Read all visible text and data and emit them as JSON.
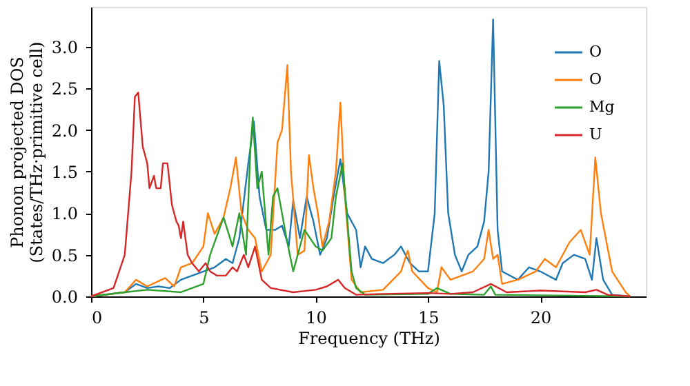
{
  "chart_data": {
    "type": "line",
    "xlabel": "Frequency (THz)",
    "ylabel": "Phonon projected DOS\n(States/THz·primitive cell)",
    "xlim": [
      0,
      24.7
    ],
    "ylim": [
      0,
      3.48
    ],
    "xticks": [
      0,
      5,
      10,
      15,
      20
    ],
    "yticks": [
      {
        "value": 0,
        "label": "0.0"
      },
      {
        "value": 0.5,
        "label": "0.5"
      },
      {
        "value": 1,
        "label": "1.0"
      },
      {
        "value": 1.5,
        "label": "1.5"
      },
      {
        "value": 2,
        "label": "2.0"
      },
      {
        "value": 2.5,
        "label": "2.5"
      },
      {
        "value": 3,
        "label": "3.0"
      }
    ],
    "grid": false,
    "legend": "top right",
    "line_style": "solid",
    "marker": "none",
    "series": [
      {
        "name": "O",
        "color": "#1f77b4",
        "x": [
          0,
          1.5,
          2,
          2.5,
          3,
          3.5,
          4,
          5,
          5.5,
          6,
          6.3,
          6.6,
          7,
          7.25,
          7.5,
          7.8,
          8.2,
          8.5,
          8.8,
          9,
          9.3,
          9.6,
          9.9,
          10.2,
          10.5,
          10.8,
          11.1,
          11.4,
          11.8,
          12,
          12.2,
          12.5,
          13,
          13.5,
          13.8,
          14.2,
          14.6,
          15,
          15.3,
          15.5,
          15.7,
          15.9,
          16.2,
          16.5,
          16.8,
          17.2,
          17.5,
          17.7,
          17.9,
          18.1,
          18.3,
          19,
          19.5,
          20,
          20.7,
          21,
          21.5,
          22,
          22.3,
          22.5,
          22.8,
          23.2,
          24
        ],
        "values": [
          0,
          0.05,
          0.15,
          0.1,
          0.12,
          0.1,
          0.2,
          0.3,
          0.35,
          0.45,
          0.4,
          0.7,
          1.6,
          2.1,
          1.2,
          0.8,
          0.8,
          0.85,
          0.6,
          1.15,
          0.7,
          1.2,
          0.9,
          0.5,
          0.7,
          1.2,
          1.65,
          1.0,
          0.8,
          0.35,
          0.6,
          0.45,
          0.4,
          0.5,
          0.6,
          0.4,
          0.3,
          0.3,
          1.0,
          2.83,
          2.3,
          1.0,
          0.5,
          0.3,
          0.5,
          0.6,
          0.9,
          1.5,
          3.33,
          0.8,
          0.3,
          0.2,
          0.35,
          0.3,
          0.2,
          0.4,
          0.5,
          0.45,
          0.2,
          0.7,
          0.2,
          0.02,
          0
        ]
      },
      {
        "name": "O",
        "color": "#ff7f0e",
        "x": [
          0,
          1.5,
          2,
          2.5,
          3.3,
          3.7,
          4,
          4.5,
          5,
          5.2,
          5.5,
          5.9,
          6.2,
          6.45,
          6.7,
          7,
          7.3,
          7.6,
          8,
          8.3,
          8.5,
          8.74,
          8.9,
          9.2,
          9.5,
          9.7,
          9.9,
          10.1,
          10.3,
          10.6,
          10.9,
          11.1,
          11.3,
          11.6,
          12,
          13,
          13.8,
          14.1,
          14.3,
          15,
          15.4,
          15.6,
          16,
          17,
          17.5,
          17.7,
          17.9,
          18.1,
          18.3,
          19,
          19.8,
          20.2,
          20.7,
          21.3,
          21.8,
          22.2,
          22.45,
          22.7,
          23.2,
          23.8,
          24
        ],
        "values": [
          0,
          0.05,
          0.2,
          0.12,
          0.22,
          0.12,
          0.35,
          0.4,
          0.6,
          1.0,
          0.75,
          0.95,
          1.3,
          1.67,
          1.0,
          0.8,
          0.7,
          0.3,
          0.5,
          1.85,
          2.0,
          2.78,
          1.5,
          0.5,
          0.55,
          1.7,
          1.3,
          1.0,
          0.6,
          0.9,
          1.5,
          2.33,
          1.2,
          0.2,
          0.05,
          0.08,
          0.3,
          0.55,
          0.3,
          0.1,
          0.05,
          0.35,
          0.2,
          0.3,
          0.45,
          0.8,
          0.45,
          0.5,
          0.15,
          0.2,
          0.3,
          0.45,
          0.35,
          0.65,
          0.8,
          0.5,
          1.67,
          1.0,
          0.3,
          0.05,
          0
        ]
      },
      {
        "name": "Mg",
        "color": "#2ca02c",
        "x": [
          0,
          1.5,
          2.5,
          4,
          5,
          5.3,
          5.9,
          6.3,
          6.6,
          6.9,
          7.1,
          7.2,
          7.4,
          7.6,
          7.9,
          8.1,
          8.3,
          8.7,
          9,
          9.5,
          10,
          10.3,
          10.7,
          10.9,
          11.2,
          11.6,
          11.8,
          12.2,
          15,
          15.4,
          16,
          17.5,
          17.8,
          18,
          24
        ],
        "values": [
          0,
          0.05,
          0.08,
          0.05,
          0.15,
          0.5,
          0.95,
          0.6,
          1.0,
          0.5,
          1.8,
          2.15,
          1.3,
          1.5,
          0.5,
          1.2,
          1.3,
          0.7,
          0.3,
          0.8,
          0.6,
          0.55,
          0.7,
          1.2,
          1.6,
          0.3,
          0.1,
          0.02,
          0.03,
          0.1,
          0.03,
          0.02,
          0.12,
          0.02,
          0
        ]
      },
      {
        "name": "U",
        "color": "#d62728",
        "x": [
          0,
          1,
          1.5,
          1.8,
          1.95,
          2.1,
          2.3,
          2.5,
          2.6,
          2.8,
          2.9,
          3.1,
          3.2,
          3.4,
          3.6,
          3.8,
          3.9,
          4,
          4.1,
          4.3,
          4.5,
          4.8,
          5.1,
          5.3,
          5.6,
          6,
          6.3,
          6.5,
          6.8,
          7,
          7.3,
          7.6,
          8,
          9,
          10,
          10.5,
          11,
          11.3,
          11.8,
          13,
          15,
          16,
          17,
          17.8,
          18.5,
          20,
          22,
          22.5,
          23,
          24
        ],
        "values": [
          0,
          0.1,
          0.5,
          1.5,
          2.4,
          2.45,
          1.8,
          1.6,
          1.3,
          1.45,
          1.3,
          1.3,
          1.6,
          1.6,
          1.1,
          0.9,
          0.85,
          0.7,
          0.9,
          0.5,
          0.4,
          0.3,
          0.4,
          0.3,
          0.25,
          0.25,
          0.35,
          0.3,
          0.5,
          0.35,
          0.6,
          0.2,
          0.1,
          0.05,
          0.08,
          0.12,
          0.2,
          0.1,
          0.02,
          0.03,
          0.04,
          0.03,
          0.05,
          0.15,
          0.05,
          0.07,
          0.05,
          0.08,
          0.02,
          0
        ]
      }
    ]
  }
}
